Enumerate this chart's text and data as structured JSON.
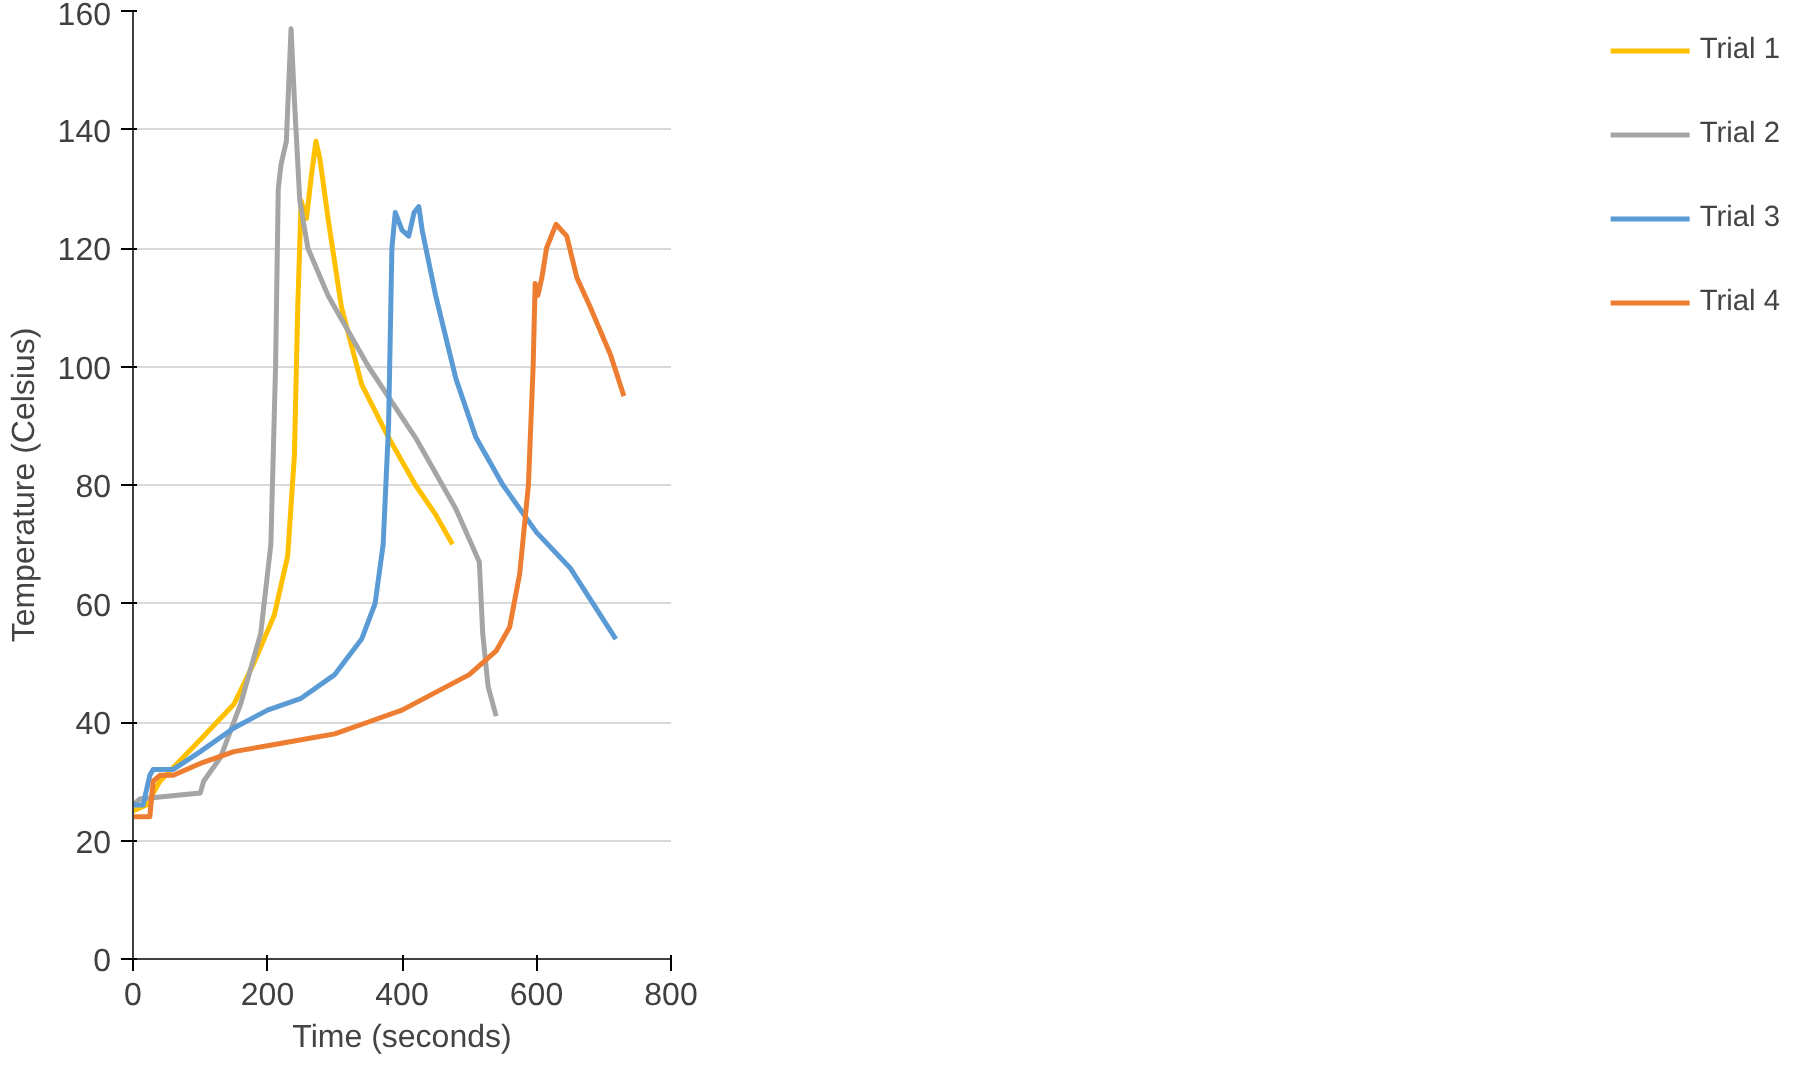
{
  "chart_data": {
    "type": "line",
    "xlabel": "Time (seconds)",
    "ylabel": "Temperature (Celsius)",
    "xlim": [
      0,
      800
    ],
    "ylim": [
      0,
      160
    ],
    "xticks": [
      0,
      200,
      400,
      600,
      800
    ],
    "yticks": [
      0,
      20,
      40,
      60,
      80,
      100,
      120,
      140,
      160
    ],
    "grid": "y",
    "legend": "right",
    "marker": "none",
    "line_style": "solid",
    "series": [
      {
        "name": "Trial 1",
        "color": "#ffc000",
        "x": [
          0,
          20,
          40,
          100,
          150,
          180,
          210,
          230,
          240,
          245,
          250,
          258,
          265,
          272,
          278,
          290,
          310,
          340,
          380,
          420,
          450,
          475
        ],
        "values": [
          25,
          26,
          30,
          37,
          43,
          50,
          58,
          68,
          85,
          110,
          128,
          125,
          132,
          138,
          135,
          125,
          110,
          97,
          88,
          80,
          75,
          70
        ]
      },
      {
        "name": "Trial 2",
        "color": "#a5a5a5",
        "x": [
          0,
          10,
          100,
          105,
          130,
          160,
          190,
          205,
          212,
          216,
          220,
          228,
          235,
          240,
          248,
          260,
          290,
          350,
          420,
          480,
          515,
          520,
          528,
          540
        ],
        "values": [
          26,
          27,
          28,
          30,
          34,
          43,
          55,
          70,
          100,
          130,
          134,
          138,
          157,
          145,
          128,
          120,
          112,
          100,
          88,
          76,
          67,
          55,
          46,
          41
        ]
      },
      {
        "name": "Trial 3",
        "color": "#5b9bd5",
        "x": [
          0,
          15,
          25,
          30,
          40,
          60,
          100,
          150,
          200,
          250,
          300,
          340,
          360,
          372,
          380,
          385,
          390,
          400,
          410,
          418,
          425,
          430,
          450,
          480,
          510,
          550,
          600,
          650,
          718
        ],
        "values": [
          26,
          26,
          31,
          32,
          32,
          32,
          35,
          39,
          42,
          44,
          48,
          54,
          60,
          70,
          90,
          120,
          126,
          123,
          122,
          126,
          127,
          123,
          112,
          98,
          88,
          80,
          72,
          66,
          54
        ]
      },
      {
        "name": "Trial 4",
        "color": "#ed7d31",
        "x": [
          0,
          25,
          30,
          40,
          60,
          100,
          150,
          200,
          250,
          300,
          350,
          400,
          450,
          500,
          540,
          560,
          575,
          588,
          595,
          598,
          602,
          608,
          615,
          629,
          645,
          660,
          680,
          710,
          730
        ],
        "values": [
          24,
          24,
          30,
          31,
          31,
          33,
          35,
          36,
          37,
          38,
          40,
          42,
          45,
          48,
          52,
          56,
          65,
          80,
          100,
          114,
          112,
          115,
          120,
          124,
          122,
          115,
          110,
          102,
          95
        ]
      }
    ]
  }
}
